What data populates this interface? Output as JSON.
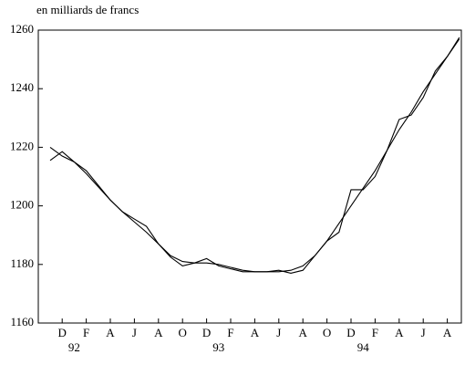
{
  "chart_data": {
    "type": "line",
    "ylabel": "en milliards de francs",
    "categories": [
      null,
      "D",
      null,
      "F",
      null,
      "A",
      null,
      "J",
      null,
      "A",
      null,
      "O",
      null,
      "D",
      null,
      "F",
      null,
      "A",
      null,
      "J",
      null,
      "A",
      null,
      "O",
      null,
      "D",
      null,
      "F",
      null,
      "A",
      null,
      "J",
      null,
      "A",
      null
    ],
    "year_labels": [
      null,
      null,
      "92",
      null,
      null,
      null,
      null,
      null,
      null,
      null,
      null,
      null,
      null,
      null,
      "93",
      null,
      null,
      null,
      null,
      null,
      null,
      null,
      null,
      null,
      null,
      null,
      "94",
      null,
      null,
      null,
      null,
      null,
      null,
      null,
      null
    ],
    "series": [
      {
        "color": "#000000",
        "values": [
          1215.5,
          1218.5,
          1215,
          1212,
          1207,
          1202,
          1198,
          1195.5,
          1193,
          1187,
          1182.5,
          1179.5,
          1180.5,
          1182,
          1179.5,
          1178.5,
          1177.5,
          1177.5,
          1177.5,
          1178,
          1177,
          1178,
          1183,
          1188,
          1191,
          1205.5,
          1205.5,
          1210,
          1219,
          1229.5,
          1231,
          1237,
          1246,
          1251,
          1257.5
        ]
      },
      {
        "color": "#000000",
        "values": [
          1220,
          1217,
          1215,
          1211,
          1206.5,
          1202,
          1198,
          1194.5,
          1191,
          1187,
          1183,
          1181,
          1180.5,
          1180.5,
          1180,
          1179,
          1178,
          1177.5,
          1177.5,
          1177.5,
          1178,
          1179.5,
          1183,
          1188,
          1194,
          1200,
          1206,
          1212,
          1219,
          1226,
          1232,
          1239,
          1245,
          1251,
          1257
        ]
      }
    ],
    "ylim": [
      1160,
      1260
    ],
    "yticks": [
      1160,
      1180,
      1200,
      1220,
      1240,
      1260
    ]
  }
}
